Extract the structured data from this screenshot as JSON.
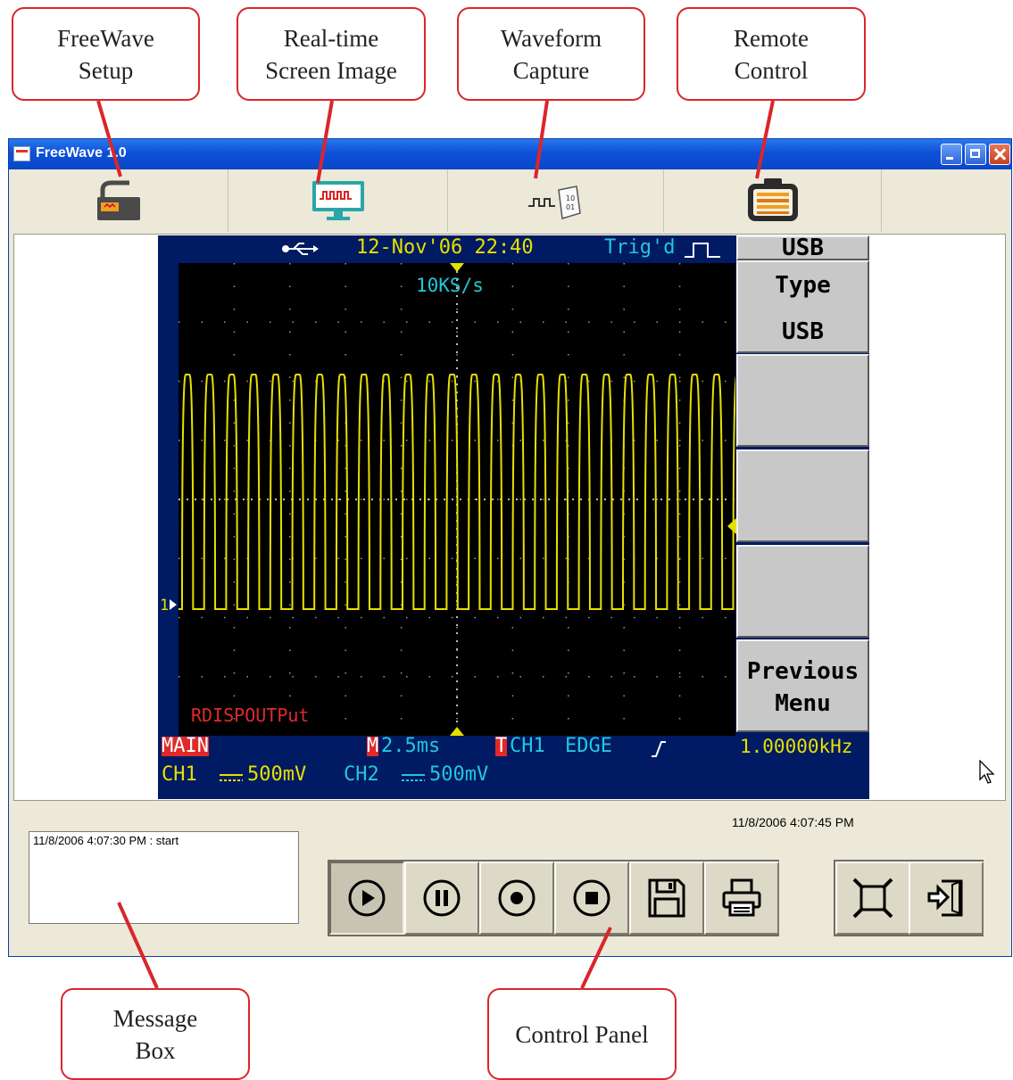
{
  "callouts": {
    "freewave_setup": "FreeWave\nSetup",
    "realtime_screen_image": "Real-time\nScreen Image",
    "waveform_capture": "Waveform\nCapture",
    "remote_control": "Remote\nControl",
    "message_box": "Message\nBox",
    "control_panel": "Control Panel"
  },
  "window": {
    "title": "FreeWave 1.0",
    "toolbar": [
      {
        "name": "freewave-setup-button",
        "icon": "setup-icon"
      },
      {
        "name": "realtime-screen-image-button",
        "icon": "monitor-icon"
      },
      {
        "name": "waveform-capture-button",
        "icon": "waveform-capture-icon"
      },
      {
        "name": "remote-control-button",
        "icon": "remote-control-icon"
      }
    ]
  },
  "scope": {
    "date_time": "12-Nov'06 22:40",
    "trigger_status": "Trig'd",
    "sample_rate": "10KS/s",
    "ref_label": "RDISPOUTPut",
    "channel_marker": "1",
    "main_label": "MAIN",
    "m_marker": "M",
    "timebase": "2.5ms",
    "t_marker": "T",
    "trigger_source": "CH1",
    "trigger_type": "EDGE",
    "frequency": "1.00000kHz",
    "ch1_label": "CH1",
    "ch1_scale": "500mV",
    "ch2_label": "CH2",
    "ch2_scale": "500mV",
    "menu_title": "USB",
    "softkeys": [
      "Type\nUSB",
      "",
      "",
      "",
      "Previous\nMenu"
    ],
    "colors": {
      "waveform": "#e6e000",
      "background": "#001a63",
      "grid": "#000000",
      "cyan": "#22c8d8",
      "red": "#e02a2a"
    }
  },
  "panel": {
    "message_box_text": "11/8/2006 4:07:30 PM : start",
    "timestamp": "11/8/2006 4:07:45 PM",
    "controls": [
      "play-icon",
      "pause-icon",
      "record-icon",
      "stop-icon",
      "save-icon",
      "print-icon",
      "fullscreen-icon",
      "exit-icon"
    ]
  }
}
